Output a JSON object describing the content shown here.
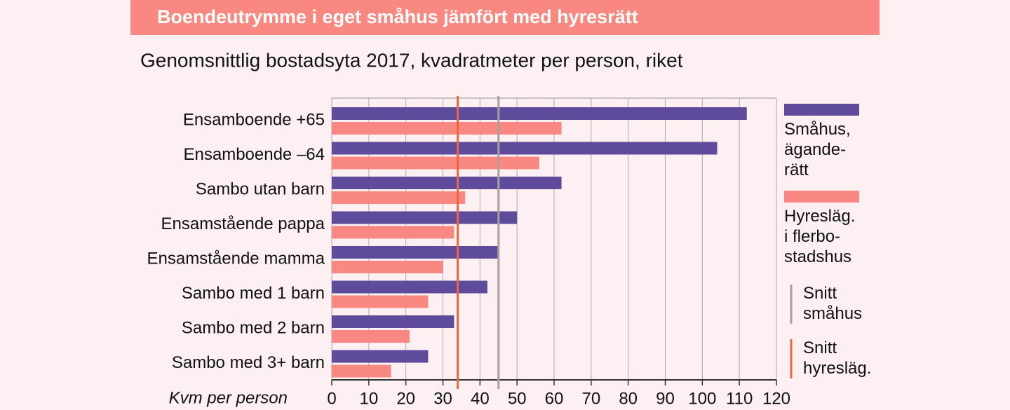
{
  "chart_data": {
    "type": "hbar",
    "title": "Boendeutrymme i eget småhus jämfört med hyresrätt",
    "subtitle": "Genomsnittlig bostadsyta 2017, kvadratmeter per person, riket",
    "x_label": "Kvm per person",
    "categories": [
      "Ensamboende +65",
      "Ensamboende –64",
      "Sambo utan barn",
      "Ensamstående pappa",
      "Ensamstående mamma",
      "Sambo med 1 barn",
      "Sambo med 2 barn",
      "Sambo med 3+ barn"
    ],
    "series": [
      {
        "name": "Småhus,\nägande-\nrätt",
        "color": "#5f4b9b",
        "values": [
          112,
          104,
          62,
          50,
          45,
          42,
          33,
          26
        ]
      },
      {
        "name": "Hyresläg.\ni flerbo-\nstadshus",
        "color": "#f88880",
        "values": [
          62,
          56,
          36,
          33,
          30,
          26,
          21,
          16
        ]
      }
    ],
    "reference_lines": [
      {
        "name": "Snitt\nsmåhus",
        "value": 45,
        "color": "#a8a09e"
      },
      {
        "name": "Snitt\nhyresläg.",
        "value": 34,
        "color": "#ef6540"
      }
    ],
    "xlim": [
      0,
      120
    ],
    "xticks": [
      0,
      10,
      20,
      30,
      40,
      50,
      60,
      70,
      80,
      90,
      100,
      110,
      120
    ],
    "grid": true
  }
}
